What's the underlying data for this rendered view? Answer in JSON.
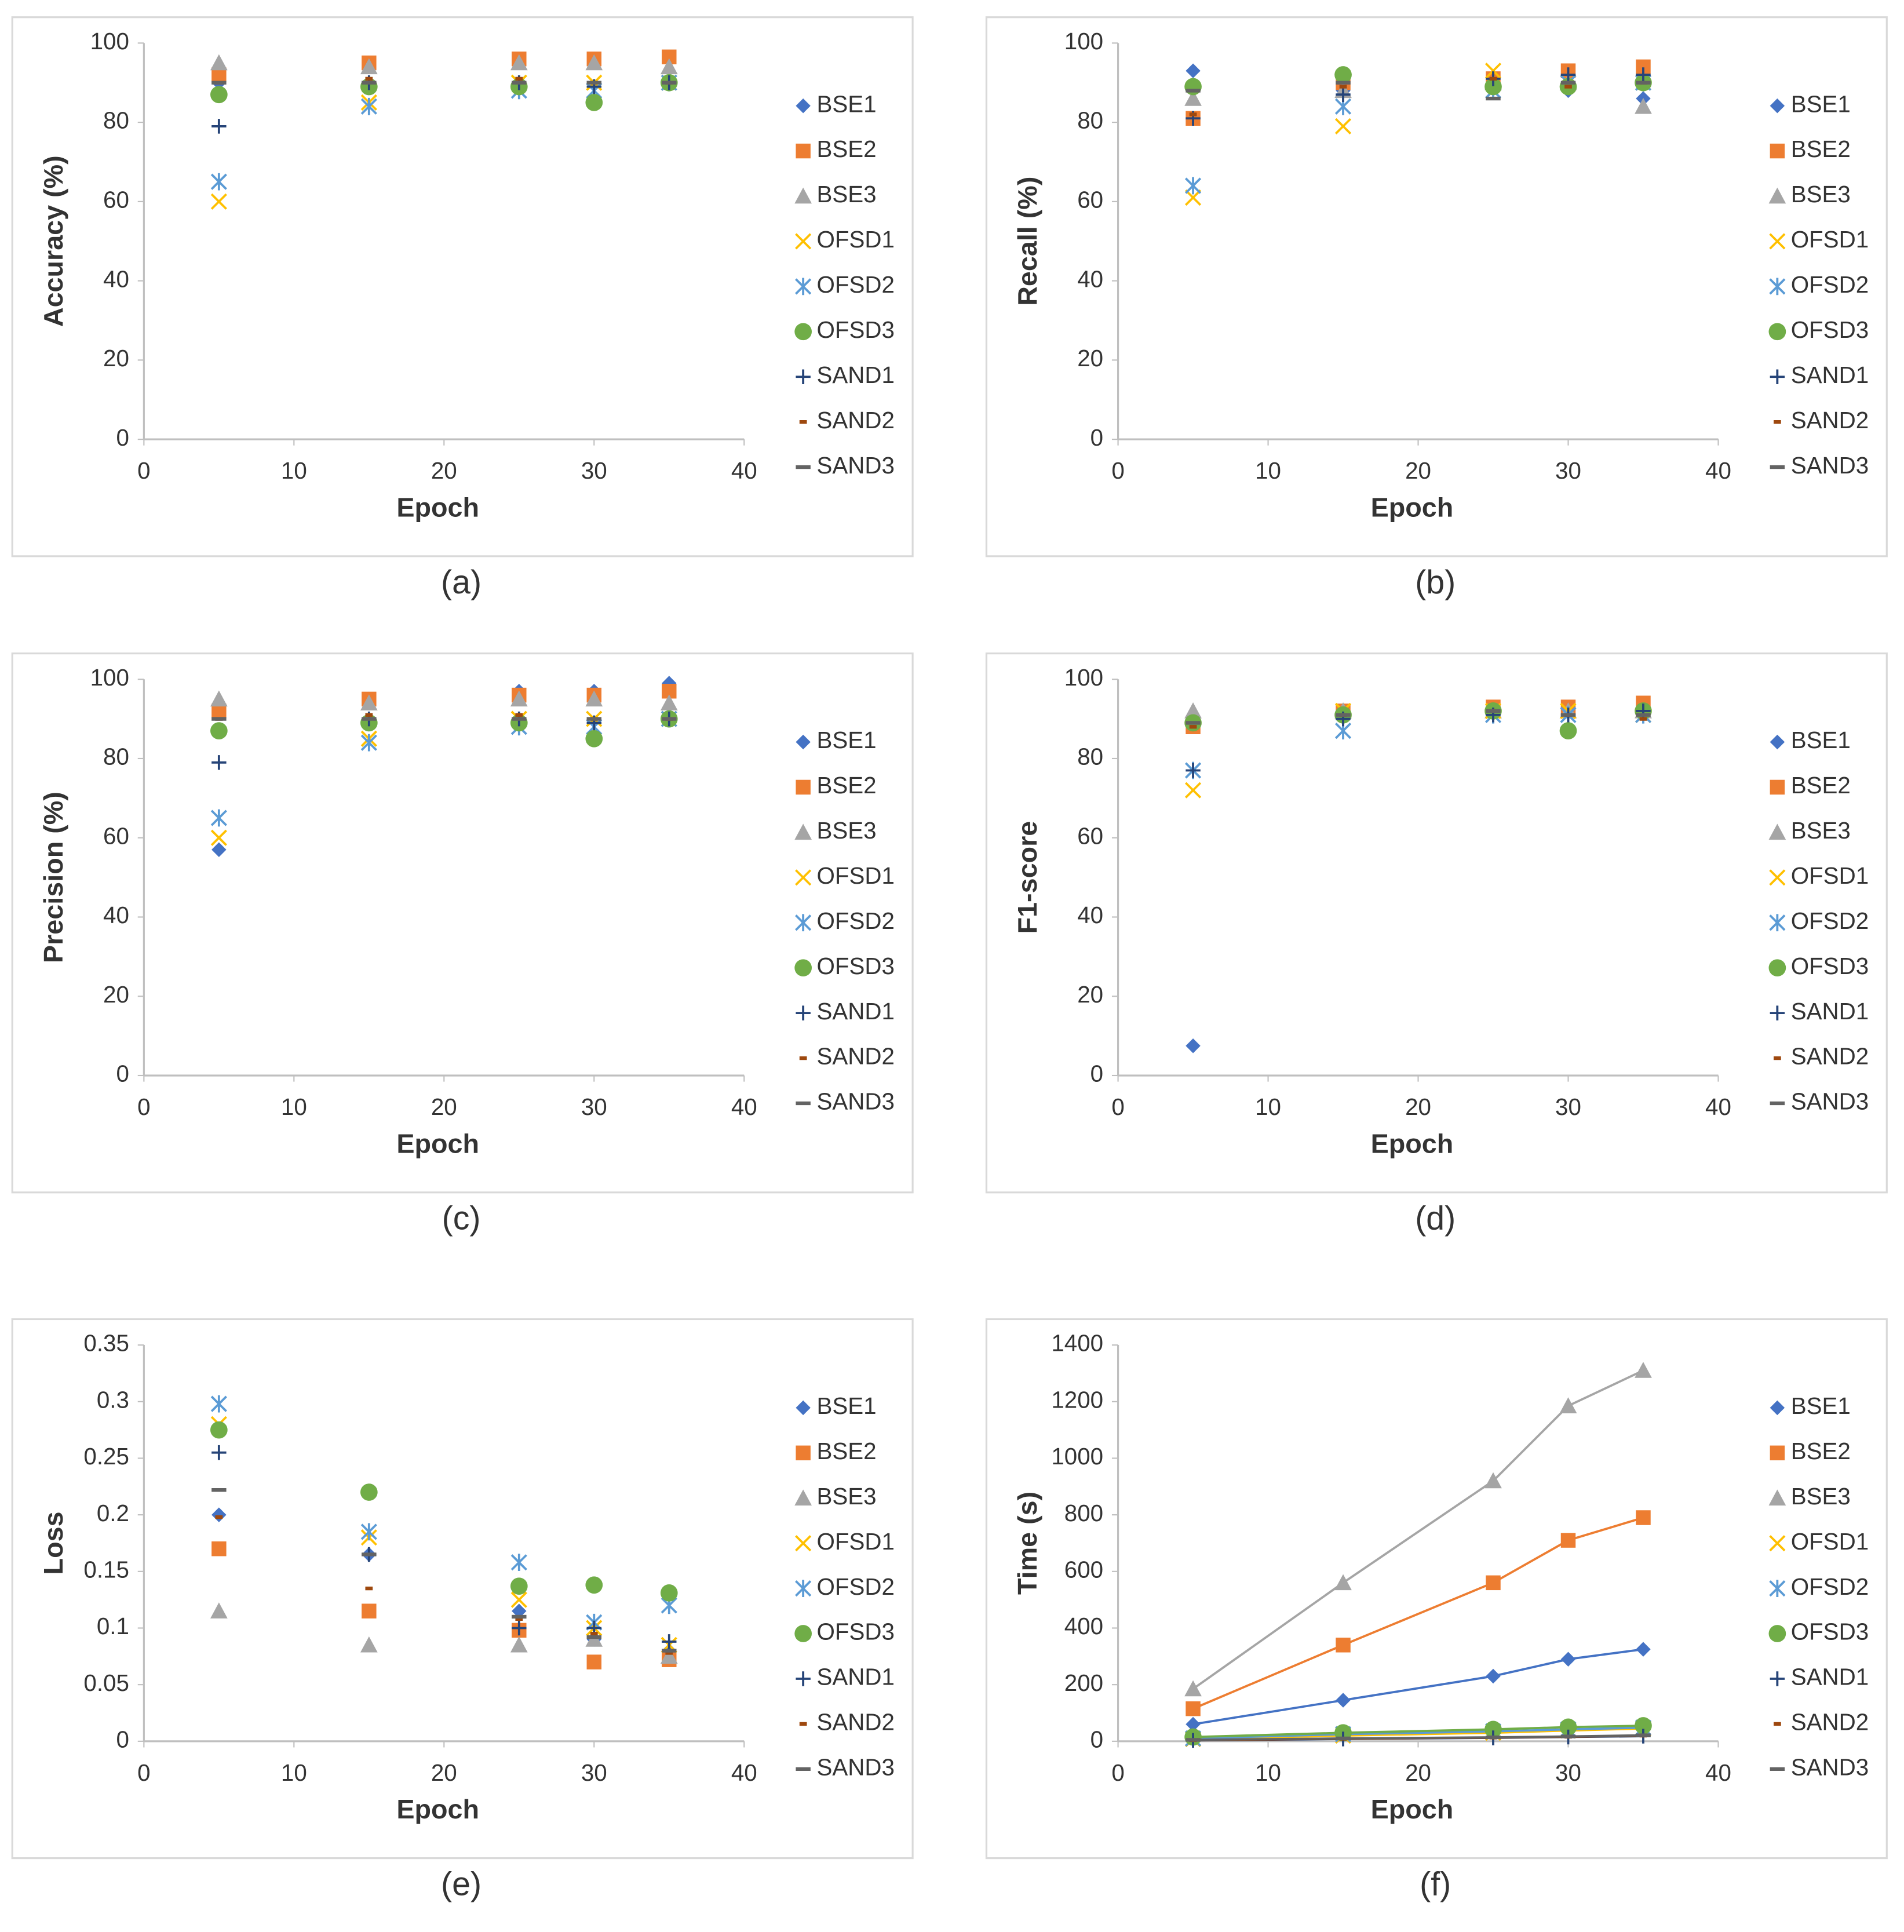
{
  "chart_data": [
    {
      "type": "scatter",
      "caption": "(a)",
      "x_label": "Epoch",
      "y_label": "Accuracy (%)",
      "xlim": [
        0,
        40
      ],
      "xticks": [
        0,
        10,
        20,
        30,
        40
      ],
      "ylim": [
        0,
        100
      ],
      "yticks": [
        0,
        20,
        40,
        60,
        80,
        100
      ],
      "x": [
        5,
        15,
        25,
        30,
        35
      ],
      "series": [
        {
          "name": "BSE1",
          "color": "#4472c4",
          "marker": "diamond",
          "values": [
            90,
            95,
            96,
            96,
            96
          ]
        },
        {
          "name": "BSE2",
          "color": "#ed7d31",
          "marker": "square",
          "values": [
            92,
            95,
            96,
            96,
            96.5
          ]
        },
        {
          "name": "BSE3",
          "color": "#a5a5a5",
          "marker": "triangle",
          "values": [
            95,
            94,
            95,
            95,
            94
          ]
        },
        {
          "name": "OFSD1",
          "color": "#ffc000",
          "marker": "x",
          "values": [
            60,
            85,
            90,
            90,
            90
          ]
        },
        {
          "name": "OFSD2",
          "color": "#5b9bd5",
          "marker": "star",
          "values": [
            65,
            84,
            88,
            88,
            90
          ]
        },
        {
          "name": "OFSD3",
          "color": "#70ad47",
          "marker": "circle",
          "values": [
            87,
            89,
            89,
            85,
            90
          ]
        },
        {
          "name": "SAND1",
          "color": "#264478",
          "marker": "plus",
          "values": [
            79,
            90,
            90,
            89,
            90
          ]
        },
        {
          "name": "SAND2",
          "color": "#9e480e",
          "marker": "dash",
          "values": [
            90,
            91,
            91,
            90,
            90
          ]
        },
        {
          "name": "SAND3",
          "color": "#636363",
          "marker": "longdash",
          "values": [
            90,
            90,
            90,
            90,
            90
          ]
        }
      ]
    },
    {
      "type": "scatter",
      "caption": "(b)",
      "x_label": "Epoch",
      "y_label": "Recall (%)",
      "xlim": [
        0,
        40
      ],
      "xticks": [
        0,
        10,
        20,
        30,
        40
      ],
      "ylim": [
        0,
        100
      ],
      "yticks": [
        0,
        20,
        40,
        60,
        80,
        100
      ],
      "x": [
        5,
        15,
        25,
        30,
        35
      ],
      "series": [
        {
          "name": "BSE1",
          "color": "#4472c4",
          "marker": "diamond",
          "values": [
            93,
            88,
            90,
            88,
            86
          ]
        },
        {
          "name": "BSE2",
          "color": "#ed7d31",
          "marker": "square",
          "values": [
            81,
            90,
            91,
            93,
            94
          ]
        },
        {
          "name": "BSE3",
          "color": "#a5a5a5",
          "marker": "triangle",
          "values": [
            86,
            88,
            90,
            90,
            84
          ]
        },
        {
          "name": "OFSD1",
          "color": "#ffc000",
          "marker": "x",
          "values": [
            61,
            79,
            93,
            90,
            90
          ]
        },
        {
          "name": "OFSD2",
          "color": "#5b9bd5",
          "marker": "star",
          "values": [
            64,
            84,
            88,
            90,
            90
          ]
        },
        {
          "name": "OFSD3",
          "color": "#70ad47",
          "marker": "circle",
          "values": [
            89,
            92,
            89,
            89,
            90
          ]
        },
        {
          "name": "SAND1",
          "color": "#264478",
          "marker": "plus",
          "values": [
            81,
            87,
            91,
            92,
            92
          ]
        },
        {
          "name": "SAND2",
          "color": "#9e480e",
          "marker": "dash",
          "values": [
            82,
            89,
            91,
            89,
            90
          ]
        },
        {
          "name": "SAND3",
          "color": "#636363",
          "marker": "longdash",
          "values": [
            88,
            90,
            86,
            90,
            90
          ]
        }
      ]
    },
    {
      "type": "scatter",
      "caption": "(c)",
      "x_label": "Epoch",
      "y_label": "Precision (%)",
      "xlim": [
        0,
        40
      ],
      "xticks": [
        0,
        10,
        20,
        30,
        40
      ],
      "ylim": [
        0,
        100
      ],
      "yticks": [
        0,
        20,
        40,
        60,
        80,
        100
      ],
      "x": [
        5,
        15,
        25,
        30,
        35
      ],
      "series": [
        {
          "name": "BSE1",
          "color": "#4472c4",
          "marker": "diamond",
          "values": [
            57,
            95,
            97,
            97,
            99
          ]
        },
        {
          "name": "BSE2",
          "color": "#ed7d31",
          "marker": "square",
          "values": [
            92,
            95,
            96,
            96,
            97
          ]
        },
        {
          "name": "BSE3",
          "color": "#a5a5a5",
          "marker": "triangle",
          "values": [
            95,
            94,
            95,
            95,
            94
          ]
        },
        {
          "name": "OFSD1",
          "color": "#ffc000",
          "marker": "x",
          "values": [
            60,
            85,
            90,
            90,
            90
          ]
        },
        {
          "name": "OFSD2",
          "color": "#5b9bd5",
          "marker": "star",
          "values": [
            65,
            84,
            88,
            88,
            90
          ]
        },
        {
          "name": "OFSD3",
          "color": "#70ad47",
          "marker": "circle",
          "values": [
            87,
            89,
            89,
            85,
            90
          ]
        },
        {
          "name": "SAND1",
          "color": "#264478",
          "marker": "plus",
          "values": [
            79,
            90,
            90,
            89,
            90
          ]
        },
        {
          "name": "SAND2",
          "color": "#9e480e",
          "marker": "dash",
          "values": [
            90,
            91,
            91,
            90,
            90
          ]
        },
        {
          "name": "SAND3",
          "color": "#636363",
          "marker": "longdash",
          "values": [
            90,
            90,
            90,
            90,
            90
          ]
        }
      ]
    },
    {
      "type": "scatter",
      "caption": "(d)",
      "x_label": "Epoch",
      "y_label": "F1-score",
      "xlim": [
        0,
        40
      ],
      "xticks": [
        0,
        10,
        20,
        30,
        40
      ],
      "ylim": [
        0,
        100
      ],
      "yticks": [
        0,
        20,
        40,
        60,
        80,
        100
      ],
      "x": [
        5,
        15,
        25,
        30,
        35
      ],
      "series": [
        {
          "name": "BSE1",
          "color": "#4472c4",
          "marker": "diamond",
          "values": [
            7.5,
            92,
            92,
            92,
            92
          ]
        },
        {
          "name": "BSE2",
          "color": "#ed7d31",
          "marker": "square",
          "values": [
            88,
            92,
            93,
            93,
            94
          ]
        },
        {
          "name": "BSE3",
          "color": "#a5a5a5",
          "marker": "triangle",
          "values": [
            92,
            92,
            92,
            92,
            92
          ]
        },
        {
          "name": "OFSD1",
          "color": "#ffc000",
          "marker": "x",
          "values": [
            72,
            92,
            92,
            92,
            91
          ]
        },
        {
          "name": "OFSD2",
          "color": "#5b9bd5",
          "marker": "star",
          "values": [
            77,
            87,
            91,
            91,
            91
          ]
        },
        {
          "name": "OFSD3",
          "color": "#70ad47",
          "marker": "circle",
          "values": [
            89,
            91,
            92,
            87,
            92
          ]
        },
        {
          "name": "SAND1",
          "color": "#264478",
          "marker": "plus",
          "values": [
            77,
            90,
            91,
            91,
            92
          ]
        },
        {
          "name": "SAND2",
          "color": "#9e480e",
          "marker": "dash",
          "values": [
            88,
            91,
            92,
            91,
            90
          ]
        },
        {
          "name": "SAND3",
          "color": "#636363",
          "marker": "longdash",
          "values": [
            89,
            91,
            92,
            91,
            91
          ]
        }
      ]
    },
    {
      "type": "scatter",
      "caption": "(e)",
      "x_label": "Epoch",
      "y_label": "Loss",
      "xlim": [
        0,
        40
      ],
      "xticks": [
        0,
        10,
        20,
        30,
        40
      ],
      "ylim": [
        0,
        0.35
      ],
      "yticks": [
        0,
        0.05,
        0.1,
        0.15,
        0.2,
        0.25,
        0.3,
        0.35
      ],
      "x": [
        5,
        15,
        25,
        30,
        35
      ],
      "series": [
        {
          "name": "BSE1",
          "color": "#4472c4",
          "marker": "diamond",
          "values": [
            0.2,
            0.165,
            0.115,
            0.09,
            0.08
          ]
        },
        {
          "name": "BSE2",
          "color": "#ed7d31",
          "marker": "square",
          "values": [
            0.17,
            0.115,
            0.098,
            0.07,
            0.072
          ]
        },
        {
          "name": "BSE3",
          "color": "#a5a5a5",
          "marker": "triangle",
          "values": [
            0.115,
            0.085,
            0.085,
            0.09,
            0.075
          ]
        },
        {
          "name": "OFSD1",
          "color": "#ffc000",
          "marker": "x",
          "values": [
            0.28,
            0.18,
            0.125,
            0.1,
            0.085
          ]
        },
        {
          "name": "OFSD2",
          "color": "#5b9bd5",
          "marker": "star",
          "values": [
            0.298,
            0.185,
            0.158,
            0.105,
            0.12
          ]
        },
        {
          "name": "OFSD3",
          "color": "#70ad47",
          "marker": "circle",
          "values": [
            0.275,
            0.22,
            0.137,
            0.138,
            0.131
          ]
        },
        {
          "name": "SAND1",
          "color": "#264478",
          "marker": "plus",
          "values": [
            0.255,
            0.165,
            0.1,
            0.1,
            0.088
          ]
        },
        {
          "name": "SAND2",
          "color": "#9e480e",
          "marker": "dash",
          "values": [
            0.198,
            0.135,
            0.108,
            0.095,
            0.078
          ]
        },
        {
          "name": "SAND3",
          "color": "#636363",
          "marker": "longdash",
          "values": [
            0.222,
            0.165,
            0.11,
            0.092,
            0.08
          ]
        }
      ]
    },
    {
      "type": "line",
      "caption": "(f)",
      "x_label": "Epoch",
      "y_label": "Time (s)",
      "xlim": [
        0,
        40
      ],
      "xticks": [
        0,
        10,
        20,
        30,
        40
      ],
      "ylim": [
        0,
        1400
      ],
      "yticks": [
        0,
        200,
        400,
        600,
        800,
        1000,
        1200,
        1400
      ],
      "x": [
        5,
        15,
        25,
        30,
        35
      ],
      "series": [
        {
          "name": "BSE1",
          "color": "#4472c4",
          "marker": "diamond",
          "values": [
            60,
            145,
            230,
            290,
            325
          ]
        },
        {
          "name": "BSE2",
          "color": "#ed7d31",
          "marker": "square",
          "values": [
            115,
            340,
            560,
            710,
            790
          ]
        },
        {
          "name": "BSE3",
          "color": "#a5a5a5",
          "marker": "triangle",
          "values": [
            185,
            560,
            920,
            1185,
            1310
          ]
        },
        {
          "name": "OFSD1",
          "color": "#ffc000",
          "marker": "x",
          "values": [
            8,
            20,
            30,
            38,
            45
          ]
        },
        {
          "name": "OFSD2",
          "color": "#5b9bd5",
          "marker": "star",
          "values": [
            10,
            25,
            35,
            42,
            48
          ]
        },
        {
          "name": "OFSD3",
          "color": "#70ad47",
          "marker": "circle",
          "values": [
            15,
            30,
            42,
            50,
            55
          ]
        },
        {
          "name": "SAND1",
          "color": "#264478",
          "marker": "plus",
          "values": [
            3,
            8,
            12,
            15,
            18
          ]
        },
        {
          "name": "SAND2",
          "color": "#9e480e",
          "marker": "dash",
          "values": [
            4,
            9,
            13,
            16,
            20
          ]
        },
        {
          "name": "SAND3",
          "color": "#636363",
          "marker": "longdash",
          "values": [
            5,
            10,
            14,
            17,
            21
          ]
        }
      ]
    }
  ]
}
